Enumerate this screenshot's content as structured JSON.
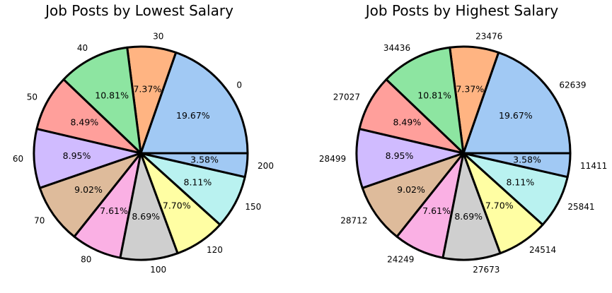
{
  "chart_data": [
    {
      "type": "pie",
      "title": "Job Posts by Lowest Salary",
      "labels": [
        "0",
        "30",
        "40",
        "50",
        "60",
        "70",
        "80",
        "100",
        "120",
        "150",
        "200"
      ],
      "values": [
        19.67,
        7.37,
        10.81,
        8.49,
        8.95,
        9.02,
        7.61,
        8.69,
        7.7,
        8.11,
        3.58
      ],
      "percent_labels": [
        "19.67%",
        "7.37%",
        "10.81%",
        "8.49%",
        "8.95%",
        "9.02%",
        "7.61%",
        "8.69%",
        "7.70%",
        "8.11%",
        "3.58%"
      ],
      "colors": [
        "#a1c9f4",
        "#ffb482",
        "#8de5a1",
        "#ff9f9b",
        "#d0bbff",
        "#debb9b",
        "#fab0e4",
        "#cfcfcf",
        "#fffea3",
        "#b9f2f0",
        "#a1c9f4"
      ],
      "start_angle": 0,
      "direction": "counterclockwise",
      "edge_color": "#000000"
    },
    {
      "type": "pie",
      "title": "Job Posts by Highest Salary",
      "labels": [
        "62639",
        "23476",
        "34436",
        "27027",
        "28499",
        "28712",
        "24249",
        "27673",
        "24514",
        "25841",
        "11411"
      ],
      "values": [
        19.67,
        7.37,
        10.81,
        8.49,
        8.95,
        9.02,
        7.61,
        8.69,
        7.7,
        8.11,
        3.58
      ],
      "percent_labels": [
        "19.67%",
        "7.37%",
        "10.81%",
        "8.49%",
        "8.95%",
        "9.02%",
        "7.61%",
        "8.69%",
        "7.70%",
        "8.11%",
        "3.58%"
      ],
      "colors": [
        "#a1c9f4",
        "#ffb482",
        "#8de5a1",
        "#ff9f9b",
        "#d0bbff",
        "#debb9b",
        "#fab0e4",
        "#cfcfcf",
        "#fffea3",
        "#b9f2f0",
        "#a1c9f4"
      ],
      "start_angle": 0,
      "direction": "counterclockwise",
      "edge_color": "#000000"
    }
  ]
}
